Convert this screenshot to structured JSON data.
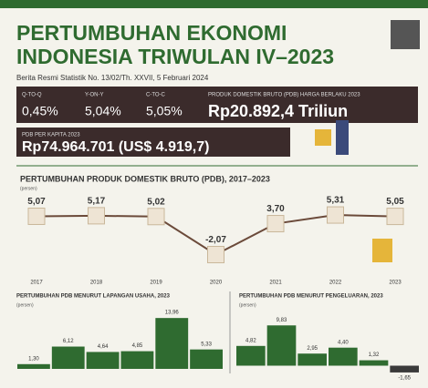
{
  "header": {
    "title_line1": "PERTUMBUHAN EKONOMI",
    "title_line2": "INDONESIA TRIWULAN IV–2023",
    "subtitle": "Berita Resmi Statistik No. 13/02/Th. XXVII, 5 Februari 2024"
  },
  "stats": [
    {
      "label": "Q-TO-Q",
      "value": "0,45%"
    },
    {
      "label": "Y-ON-Y",
      "value": "5,04%"
    },
    {
      "label": "C-TO-C",
      "value": "5,05%"
    },
    {
      "label": "PRODUK DOMESTIK BRUTO (PDB) HARGA BERLAKU 2023",
      "value": "Rp20.892,4 Triliun"
    },
    {
      "label": "PDB PER KAPITA 2023",
      "value": "Rp74.964.701 (US$ 4.919,7)"
    }
  ],
  "chart_data": [
    {
      "type": "line",
      "title": "PERTUMBUHAN PRODUK DOMESTIK BRUTO (PDB), 2017–2023",
      "unit": "(persen)",
      "categories": [
        "2017",
        "2018",
        "2019",
        "2020",
        "2021",
        "2022",
        "2023"
      ],
      "values": [
        5.07,
        5.17,
        5.02,
        -2.07,
        3.7,
        5.31,
        5.05
      ],
      "value_labels": [
        "5,07",
        "5,17",
        "5,02",
        "-2,07",
        "3,70",
        "5,31",
        "5,05"
      ],
      "ylim": [
        -3,
        6
      ],
      "color": "#6b4a3a"
    },
    {
      "type": "bar",
      "title": "PERTUMBUHAN PDB MENURUT LAPANGAN USAHA, 2023",
      "unit": "(persen)",
      "categories": [
        null,
        null,
        null,
        null,
        null,
        null
      ],
      "values": [
        1.3,
        6.12,
        4.64,
        4.85,
        13.96,
        5.33
      ],
      "value_labels": [
        "1,30",
        "6,12",
        "4,64",
        "4,85",
        "13,96",
        "5,33"
      ],
      "ylim": [
        0,
        15
      ],
      "color": "#2f6b30"
    },
    {
      "type": "bar",
      "title": "PERTUMBUHAN PDB MENURUT PENGELUARAN, 2023",
      "unit": "(persen)",
      "categories": [
        null,
        null,
        null,
        null,
        null,
        null
      ],
      "values": [
        4.82,
        9.83,
        2.95,
        4.4,
        1.32,
        -1.65
      ],
      "value_labels": [
        "4,82",
        "9,83",
        "2,95",
        "4,40",
        "1,32",
        "-1,65"
      ],
      "ylim": [
        -3,
        11
      ],
      "colors": [
        "#2f6b30",
        "#2f6b30",
        "#2f6b30",
        "#2f6b30",
        "#2f6b30",
        "#3a3a3a"
      ]
    }
  ]
}
